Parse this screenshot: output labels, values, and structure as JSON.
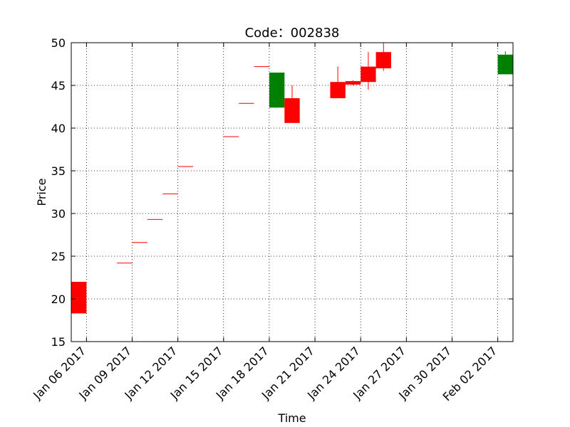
{
  "chart_data": {
    "type": "candlestick",
    "title": "Code：002838",
    "xlabel": "Time",
    "ylabel": "Price",
    "ylim": [
      15,
      50
    ],
    "yticks": [
      15,
      20,
      25,
      30,
      35,
      40,
      45,
      50
    ],
    "xlim": [
      "2017-01-05",
      "2017-02-03"
    ],
    "xticks": [
      {
        "date": "2017-01-06",
        "label": "Jan 06 2017"
      },
      {
        "date": "2017-01-09",
        "label": "Jan 09 2017"
      },
      {
        "date": "2017-01-12",
        "label": "Jan 12 2017"
      },
      {
        "date": "2017-01-15",
        "label": "Jan 15 2017"
      },
      {
        "date": "2017-01-18",
        "label": "Jan 18 2017"
      },
      {
        "date": "2017-01-21",
        "label": "Jan 21 2017"
      },
      {
        "date": "2017-01-24",
        "label": "Jan 24 2017"
      },
      {
        "date": "2017-01-27",
        "label": "Jan 27 2017"
      },
      {
        "date": "2017-01-30",
        "label": "Jan 30 2017"
      },
      {
        "date": "2017-02-02",
        "label": "Feb 02 2017"
      }
    ],
    "grid": true,
    "colors": {
      "up": "#ff0000",
      "down": "#008000"
    },
    "candles": [
      {
        "date": "2017-01-05",
        "open": 18.3,
        "high": 22.0,
        "low": 18.3,
        "close": 22.0
      },
      {
        "date": "2017-01-08",
        "open": 24.2,
        "high": 24.2,
        "low": 24.2,
        "close": 24.2
      },
      {
        "date": "2017-01-09",
        "open": 26.6,
        "high": 26.6,
        "low": 26.6,
        "close": 26.6
      },
      {
        "date": "2017-01-10",
        "open": 29.3,
        "high": 29.3,
        "low": 29.3,
        "close": 29.3
      },
      {
        "date": "2017-01-11",
        "open": 32.3,
        "high": 32.3,
        "low": 32.3,
        "close": 32.3
      },
      {
        "date": "2017-01-12",
        "open": 35.5,
        "high": 35.5,
        "low": 35.5,
        "close": 35.5
      },
      {
        "date": "2017-01-15",
        "open": 39.0,
        "high": 39.0,
        "low": 39.0,
        "close": 39.0
      },
      {
        "date": "2017-01-16",
        "open": 42.9,
        "high": 42.9,
        "low": 42.9,
        "close": 42.9
      },
      {
        "date": "2017-01-17",
        "open": 47.2,
        "high": 47.2,
        "low": 47.2,
        "close": 47.2
      },
      {
        "date": "2017-01-18",
        "open": 46.5,
        "high": 46.5,
        "low": 42.4,
        "close": 42.4
      },
      {
        "date": "2017-01-19",
        "open": 40.6,
        "high": 45.0,
        "low": 40.6,
        "close": 43.5
      },
      {
        "date": "2017-01-22",
        "open": 43.5,
        "high": 47.2,
        "low": 43.5,
        "close": 45.4
      },
      {
        "date": "2017-01-23",
        "open": 45.1,
        "high": 45.6,
        "low": 45.0,
        "close": 45.5
      },
      {
        "date": "2017-01-24",
        "open": 45.4,
        "high": 48.9,
        "low": 44.5,
        "close": 47.2
      },
      {
        "date": "2017-01-25",
        "open": 47.0,
        "high": 50.0,
        "low": 46.7,
        "close": 48.9
      },
      {
        "date": "2017-02-02",
        "open": 48.6,
        "high": 49.0,
        "low": 46.3,
        "close": 46.3
      }
    ]
  }
}
